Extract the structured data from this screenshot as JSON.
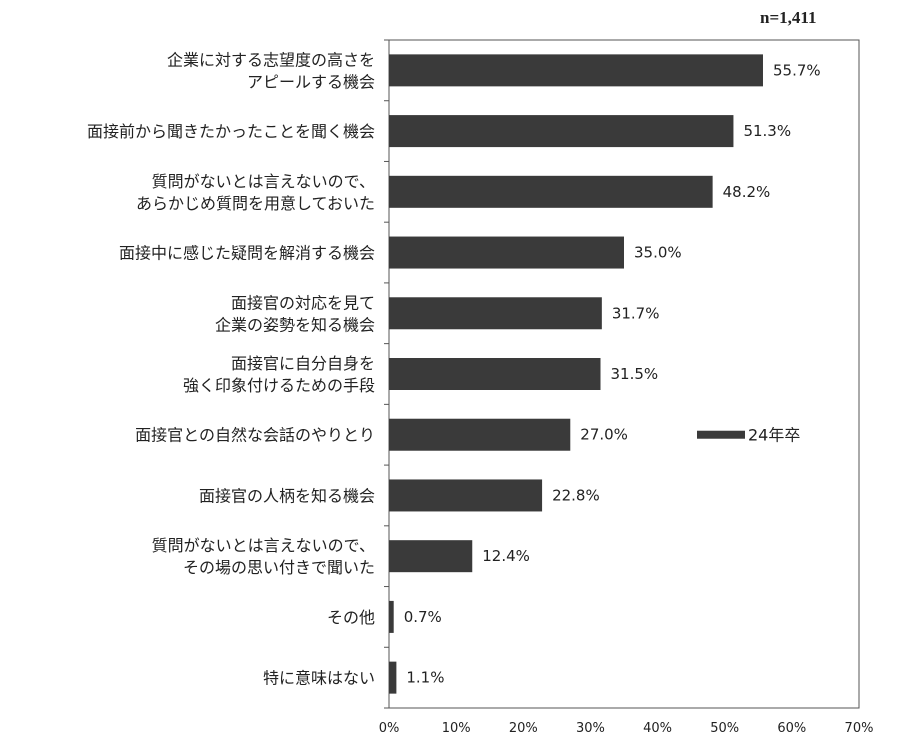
{
  "sample_note": "n=1,411",
  "colors": {
    "bar": "#3a3a3a",
    "axis": "#555555",
    "text": "#222222"
  },
  "chart_data": {
    "type": "bar",
    "orientation": "horizontal",
    "title": "",
    "xlabel": "",
    "ylabel": "",
    "xlim": [
      0,
      70
    ],
    "xticks": [
      "0%",
      "10%",
      "20%",
      "30%",
      "40%",
      "50%",
      "60%",
      "70%"
    ],
    "grid": false,
    "legend_position": "right",
    "categories": [
      [
        "企業に対する志望度の高さを",
        "アピールする機会"
      ],
      [
        "面接前から聞きたかったことを聞く機会"
      ],
      [
        "質問がないとは言えないので、",
        "あらかじめ質問を用意しておいた"
      ],
      [
        "面接中に感じた疑問を解消する機会"
      ],
      [
        "面接官の対応を見て",
        "企業の姿勢を知る機会"
      ],
      [
        "面接官に自分自身を",
        "強く印象付けるための手段"
      ],
      [
        "面接官との自然な会話のやりとり"
      ],
      [
        "面接官の人柄を知る機会"
      ],
      [
        "質問がないとは言えないので、",
        "その場の思い付きで聞いた"
      ],
      [
        "その他"
      ],
      [
        "特に意味はない"
      ]
    ],
    "series": [
      {
        "name": "24年卒",
        "values": [
          55.7,
          51.3,
          48.2,
          35.0,
          31.7,
          31.5,
          27.0,
          22.8,
          12.4,
          0.7,
          1.1
        ],
        "labels": [
          "55.7%",
          "51.3%",
          "48.2%",
          "35.0%",
          "31.7%",
          "31.5%",
          "27.0%",
          "22.8%",
          "12.4%",
          "0.7%",
          "1.1%"
        ]
      }
    ]
  }
}
